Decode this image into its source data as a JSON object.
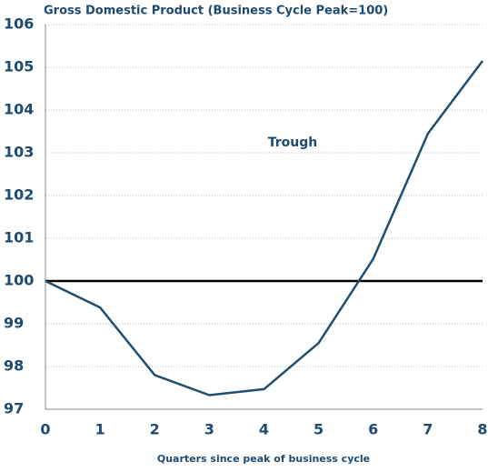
{
  "chart_data": {
    "type": "line",
    "title": "Gross Domestic Product (Business Cycle Peak=100)",
    "x_label": "Quarters since peak of business cycle",
    "annotation": "Trough",
    "x": [
      0,
      1,
      2,
      3,
      4,
      5,
      6,
      7,
      8
    ],
    "series": [
      {
        "color": "#1f4e6e",
        "values": [
          100,
          99.38,
          97.8,
          97.33,
          97.47,
          98.55,
          100.52,
          103.45,
          105.15
        ]
      }
    ],
    "reference_line": {
      "value": 100,
      "color": "#000000"
    },
    "xlim": [
      0,
      8
    ],
    "xticks": [
      0,
      1,
      2,
      3,
      4,
      5,
      6,
      7,
      8
    ],
    "ylim": [
      97,
      106
    ],
    "yticks": [
      97,
      98,
      99,
      100,
      101,
      102,
      103,
      104,
      105,
      106
    ],
    "grid": true
  }
}
